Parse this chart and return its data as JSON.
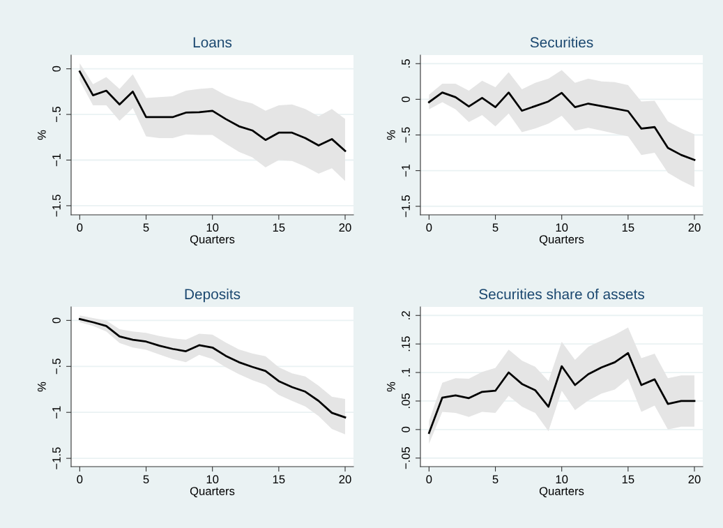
{
  "chart_data": [
    {
      "type": "line",
      "title": "Loans",
      "xlabel": "Quarters",
      "ylabel": "%",
      "x": [
        0,
        1,
        2,
        3,
        4,
        5,
        6,
        7,
        8,
        9,
        10,
        11,
        12,
        13,
        14,
        15,
        16,
        17,
        18,
        19,
        20
      ],
      "xlim": [
        -0.65,
        20.63
      ],
      "ylim": [
        -1.6,
        0.15
      ],
      "xticks": [
        0,
        5,
        10,
        15,
        20
      ],
      "yticks": [
        {
          "value": -1.5,
          "label": "−1.5"
        },
        {
          "value": -1,
          "label": "−1"
        },
        {
          "value": -0.5,
          "label": "−.5"
        },
        0
      ],
      "grid": "y",
      "series": [
        {
          "color": "#000000",
          "values": [
            -0.03,
            -0.29,
            -0.24,
            -0.39,
            -0.25,
            -0.53,
            -0.53,
            -0.53,
            -0.48,
            -0.475,
            -0.46,
            -0.55,
            -0.63,
            -0.675,
            -0.78,
            -0.7,
            -0.7,
            -0.76,
            -0.84,
            -0.77,
            -0.9
          ],
          "lower": [
            -0.13,
            -0.4,
            -0.4,
            -0.57,
            -0.43,
            -0.74,
            -0.76,
            -0.76,
            -0.72,
            -0.725,
            -0.725,
            -0.82,
            -0.91,
            -0.97,
            -1.08,
            -1.0,
            -1.01,
            -1.07,
            -1.15,
            -1.09,
            -1.23
          ],
          "upper": [
            0.06,
            -0.17,
            -0.09,
            -0.22,
            -0.06,
            -0.32,
            -0.31,
            -0.3,
            -0.24,
            -0.22,
            -0.21,
            -0.29,
            -0.345,
            -0.38,
            -0.46,
            -0.4,
            -0.39,
            -0.44,
            -0.52,
            -0.44,
            -0.55
          ]
        }
      ]
    },
    {
      "type": "line",
      "title": "Securities",
      "xlabel": "Quarters",
      "ylabel": "%",
      "x": [
        0,
        1,
        2,
        3,
        4,
        5,
        6,
        7,
        8,
        9,
        10,
        11,
        12,
        13,
        14,
        15,
        16,
        17,
        18,
        19,
        20
      ],
      "xlim": [
        -0.65,
        20.63
      ],
      "ylim": [
        -1.62,
        0.62
      ],
      "xticks": [
        0,
        5,
        10,
        15,
        20
      ],
      "yticks": [
        {
          "value": -1.5,
          "label": "−1.5"
        },
        {
          "value": -1,
          "label": "−1"
        },
        {
          "value": -0.5,
          "label": "−.5"
        },
        0,
        {
          "value": 0.5,
          "label": ".5"
        }
      ],
      "grid": "y",
      "series": [
        {
          "color": "#000000",
          "values": [
            -0.04,
            0.095,
            0.03,
            -0.1,
            0.02,
            -0.11,
            0.095,
            -0.16,
            -0.095,
            -0.03,
            0.09,
            -0.11,
            -0.06,
            -0.095,
            -0.13,
            -0.165,
            -0.41,
            -0.39,
            -0.68,
            -0.78,
            -0.85
          ],
          "lower": [
            -0.14,
            -0.04,
            -0.14,
            -0.32,
            -0.22,
            -0.38,
            -0.2,
            -0.46,
            -0.41,
            -0.34,
            -0.23,
            -0.44,
            -0.4,
            -0.44,
            -0.48,
            -0.52,
            -0.78,
            -0.75,
            -1.03,
            -1.14,
            -1.23
          ],
          "upper": [
            0.065,
            0.22,
            0.22,
            0.12,
            0.26,
            0.17,
            0.38,
            0.14,
            0.23,
            0.29,
            0.41,
            0.23,
            0.29,
            0.25,
            0.24,
            0.2,
            -0.03,
            -0.02,
            -0.31,
            -0.41,
            -0.49
          ]
        }
      ]
    },
    {
      "type": "line",
      "title": "Deposits",
      "xlabel": "Quarters",
      "ylabel": "%",
      "x": [
        0,
        1,
        2,
        3,
        4,
        5,
        6,
        7,
        8,
        9,
        10,
        11,
        12,
        13,
        14,
        15,
        16,
        17,
        18,
        19,
        20
      ],
      "xlim": [
        -0.65,
        20.63
      ],
      "ylim": [
        -1.59,
        0.147
      ],
      "xticks": [
        0,
        5,
        10,
        15,
        20
      ],
      "yticks": [
        {
          "value": -1.5,
          "label": "−1.5"
        },
        {
          "value": -1,
          "label": "−1"
        },
        {
          "value": -0.5,
          "label": "−.5"
        },
        0
      ],
      "grid": "y",
      "series": [
        {
          "color": "#000000",
          "values": [
            0.015,
            -0.02,
            -0.06,
            -0.175,
            -0.21,
            -0.23,
            -0.275,
            -0.31,
            -0.335,
            -0.27,
            -0.295,
            -0.385,
            -0.455,
            -0.505,
            -0.55,
            -0.66,
            -0.725,
            -0.775,
            -0.875,
            -1.005,
            -1.055
          ],
          "lower": [
            -0.02,
            -0.06,
            -0.12,
            -0.245,
            -0.295,
            -0.32,
            -0.37,
            -0.42,
            -0.455,
            -0.375,
            -0.42,
            -0.51,
            -0.585,
            -0.65,
            -0.7,
            -0.81,
            -0.875,
            -0.935,
            -1.04,
            -1.18,
            -1.24
          ],
          "upper": [
            0.055,
            0.025,
            0.0,
            -0.095,
            -0.12,
            -0.135,
            -0.17,
            -0.195,
            -0.21,
            -0.145,
            -0.155,
            -0.24,
            -0.315,
            -0.36,
            -0.39,
            -0.51,
            -0.575,
            -0.61,
            -0.71,
            -0.83,
            -0.855
          ]
        }
      ]
    },
    {
      "type": "line",
      "title": "Securities share of assets",
      "xlabel": "Quarters",
      "ylabel": "%",
      "x": [
        0,
        1,
        2,
        3,
        4,
        5,
        6,
        7,
        8,
        9,
        10,
        11,
        12,
        13,
        14,
        15,
        16,
        17,
        18,
        19,
        20
      ],
      "xlim": [
        -0.65,
        20.63
      ],
      "ylim": [
        -0.065,
        0.215
      ],
      "xticks": [
        0,
        5,
        10,
        15,
        20
      ],
      "yticks": [
        {
          "value": -0.05,
          "label": "−.05"
        },
        0,
        {
          "value": 0.05,
          "label": ".05"
        },
        {
          "value": 0.1,
          "label": ".1"
        },
        {
          "value": 0.15,
          "label": ".15"
        },
        {
          "value": 0.2,
          "label": ".2"
        }
      ],
      "grid": "y",
      "series": [
        {
          "color": "#000000",
          "values": [
            -0.006,
            0.056,
            0.06,
            0.055,
            0.066,
            0.068,
            0.1,
            0.08,
            0.069,
            0.04,
            0.111,
            0.078,
            0.097,
            0.109,
            0.118,
            0.134,
            0.078,
            0.088,
            0.045,
            0.05,
            0.05
          ],
          "lower": [
            -0.025,
            0.031,
            0.029,
            0.022,
            0.031,
            0.029,
            0.059,
            0.04,
            0.029,
            -0.003,
            0.068,
            0.034,
            0.051,
            0.063,
            0.07,
            0.089,
            0.031,
            0.042,
            0.0,
            0.005,
            0.005
          ],
          "upper": [
            0.015,
            0.082,
            0.09,
            0.089,
            0.101,
            0.108,
            0.14,
            0.121,
            0.11,
            0.085,
            0.154,
            0.122,
            0.145,
            0.156,
            0.166,
            0.179,
            0.125,
            0.133,
            0.09,
            0.095,
            0.095
          ]
        }
      ]
    }
  ]
}
